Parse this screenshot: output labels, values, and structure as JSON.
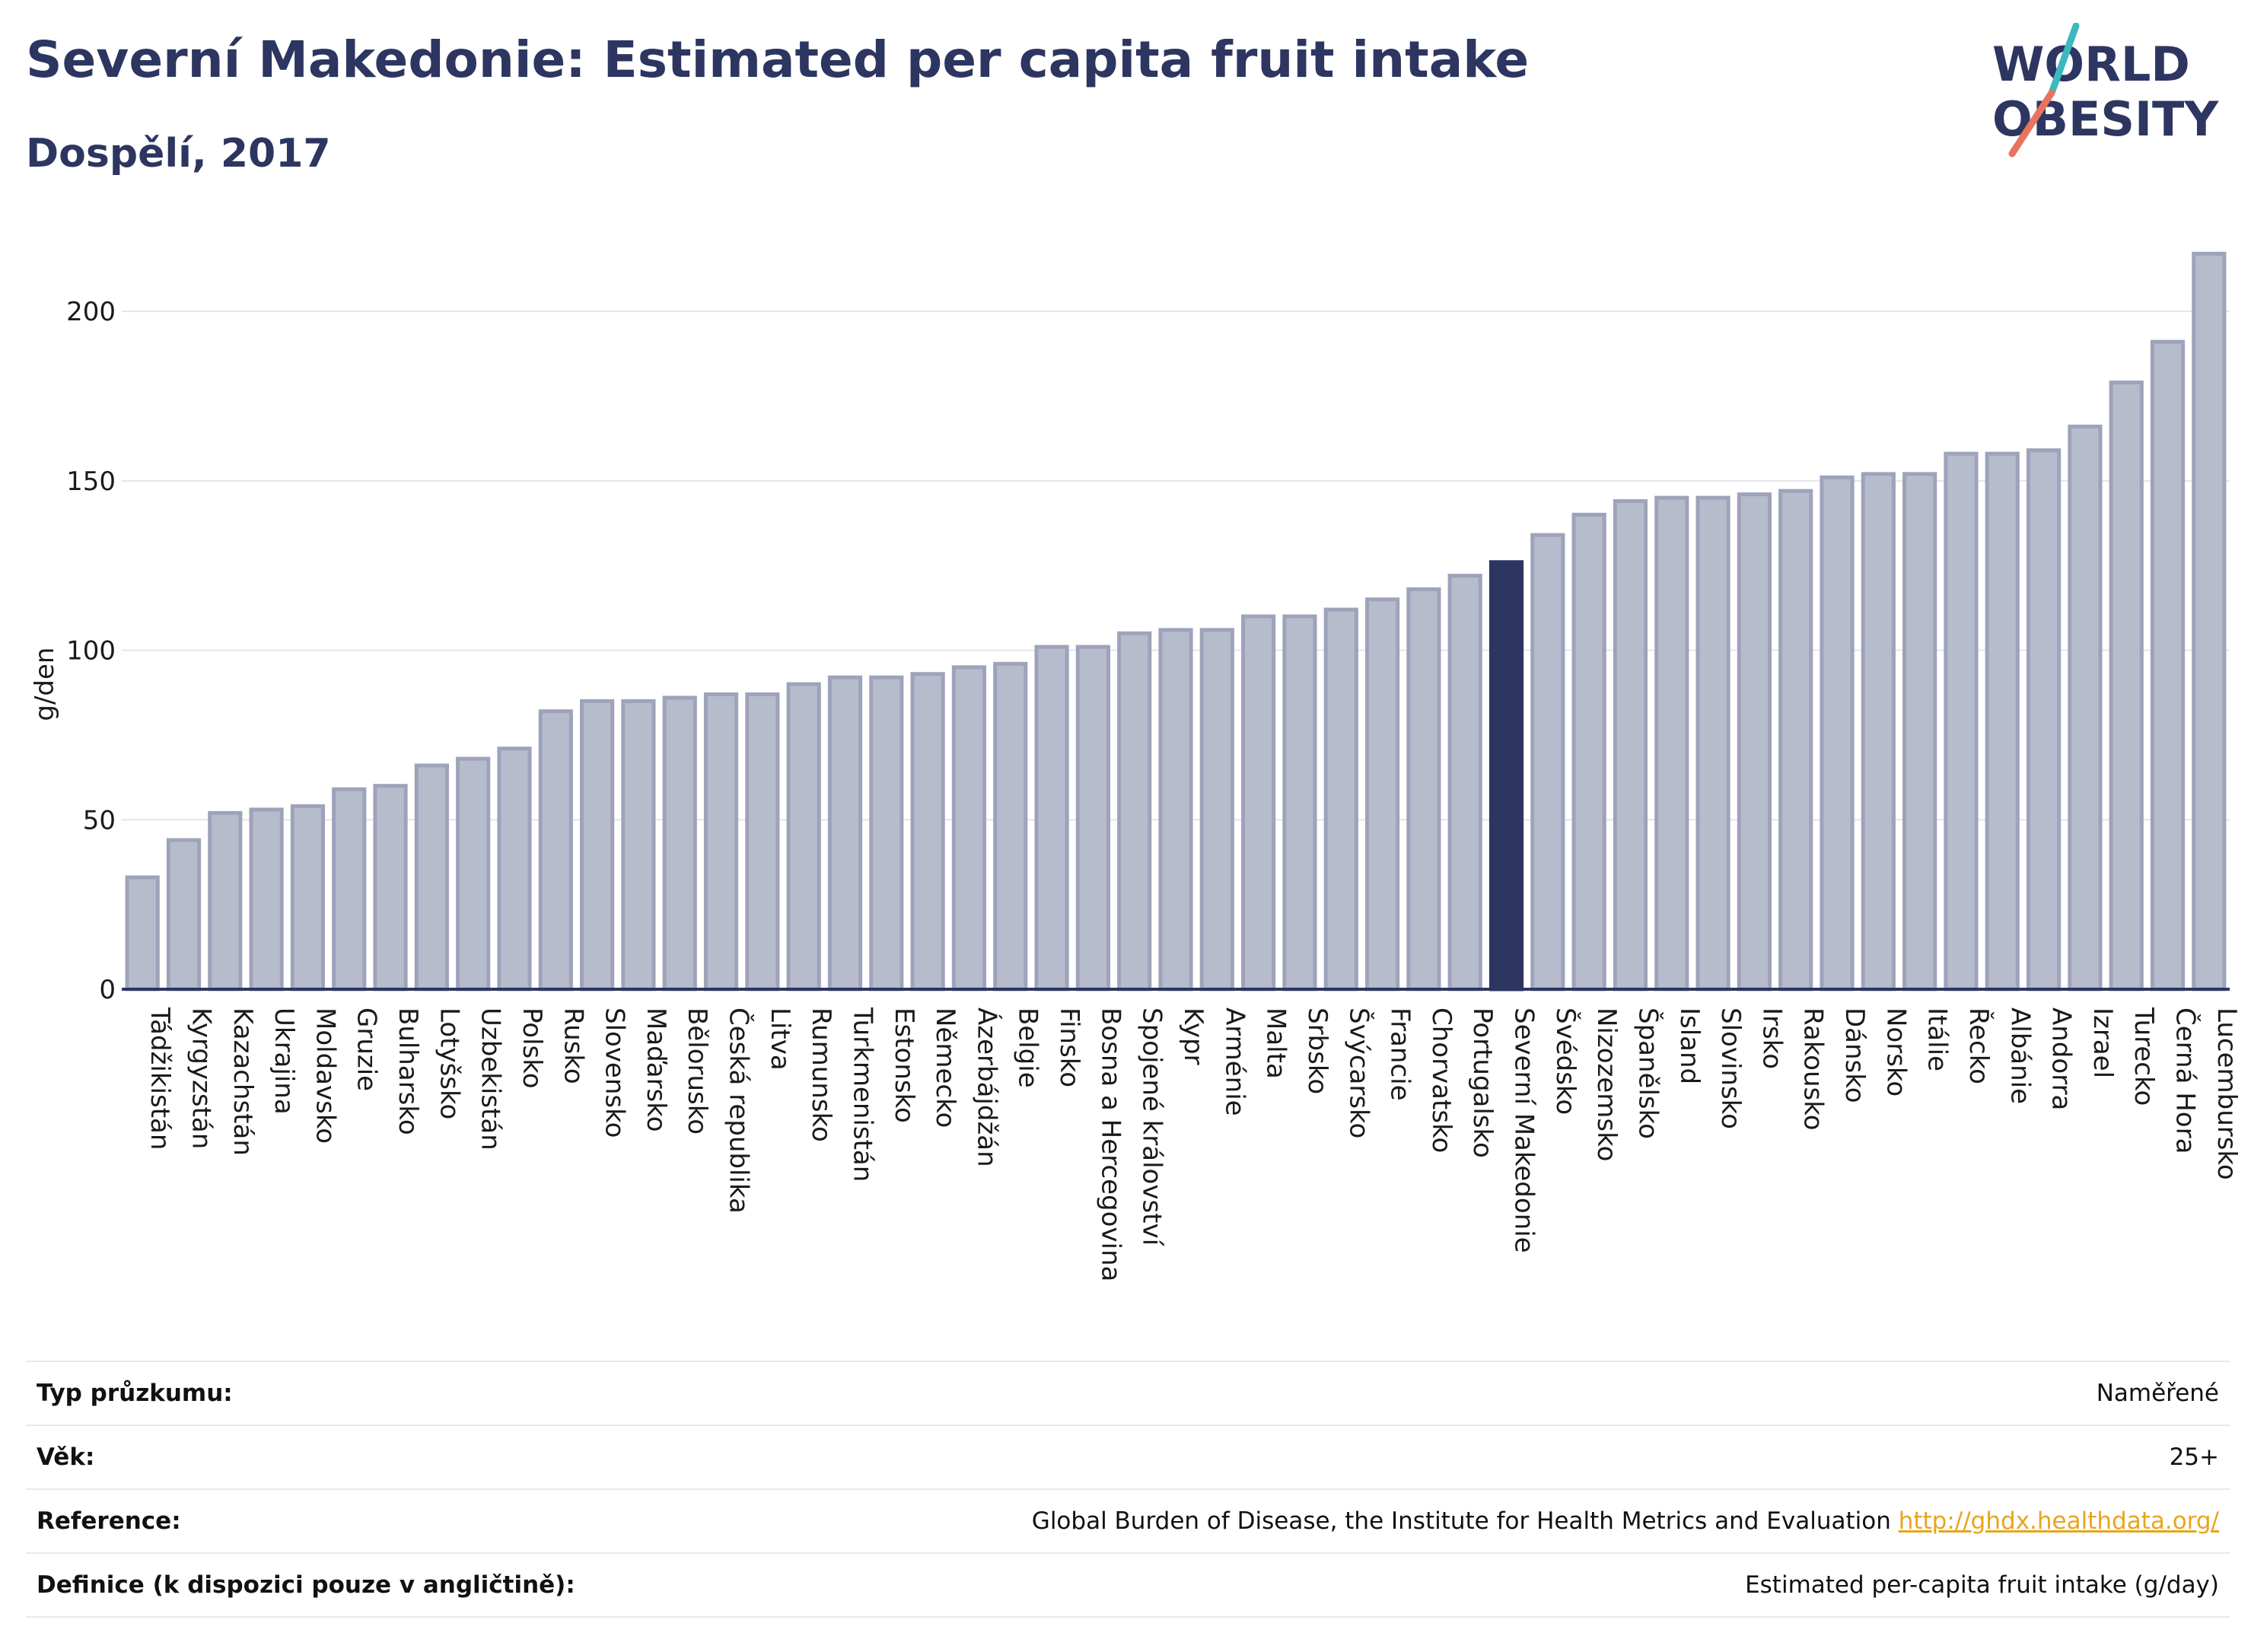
{
  "header": {
    "title": "Severní Makedonie: Estimated per capita fruit intake",
    "subtitle": "Dospělí, 2017"
  },
  "logo": {
    "text_line1": "WORLD",
    "text_line2": "OBESITY",
    "accent_colors": [
      "#3bb8c0",
      "#e8735f"
    ]
  },
  "colors": {
    "bar_default": "#b7bccd",
    "bar_border": "#9da3ba",
    "bar_highlight": "#2d3561",
    "title": "#2d3561",
    "link": "#e8a51c"
  },
  "chart_data": {
    "type": "bar",
    "title": "Severní Makedonie: Estimated per capita fruit intake",
    "subtitle": "Dospělí, 2017",
    "xlabel": "",
    "ylabel": "g/den",
    "ylim": [
      0,
      220
    ],
    "yticks": [
      0,
      50,
      100,
      150,
      200
    ],
    "grid": true,
    "highlight": "Severní Makedonie",
    "categories": [
      "Tádžikistán",
      "Kyrgyzstán",
      "Kazachstán",
      "Ukrajina",
      "Moldavsko",
      "Gruzie",
      "Bulharsko",
      "Lotyšsko",
      "Uzbekistán",
      "Polsko",
      "Rusko",
      "Slovensko",
      "Maďarsko",
      "Bělorusko",
      "Česká republika",
      "Litva",
      "Rumunsko",
      "Turkmenistán",
      "Estonsko",
      "Německo",
      "Ázerbájdžán",
      "Belgie",
      "Finsko",
      "Bosna a Hercegovina",
      "Spojené království",
      "Kypr",
      "Arménie",
      "Malta",
      "Srbsko",
      "Švýcarsko",
      "Francie",
      "Chorvatsko",
      "Portugalsko",
      "Severní Makedonie",
      "Švédsko",
      "Nizozemsko",
      "Španělsko",
      "Island",
      "Slovinsko",
      "Irsko",
      "Rakousko",
      "Dánsko",
      "Norsko",
      "Itálie",
      "Řecko",
      "Albánie",
      "Andorra",
      "Izrael",
      "Turecko",
      "Černá Hora",
      "Lucembursko"
    ],
    "values": [
      33,
      44,
      52,
      53,
      54,
      59,
      60,
      66,
      68,
      71,
      82,
      85,
      85,
      86,
      87,
      87,
      90,
      92,
      92,
      93,
      95,
      96,
      101,
      101,
      105,
      106,
      106,
      110,
      110,
      112,
      115,
      118,
      122,
      126,
      134,
      140,
      144,
      145,
      145,
      146,
      147,
      151,
      152,
      152,
      158,
      158,
      159,
      166,
      179,
      191,
      217
    ]
  },
  "info": {
    "rows": [
      {
        "label": "Typ průzkumu:",
        "value": "Naměřené"
      },
      {
        "label": "Věk:",
        "value": "25+"
      },
      {
        "label": "Reference:",
        "value": "Global Burden of Disease, the Institute for Health Metrics and Evaluation",
        "link": "http://ghdx.healthdata.org/"
      },
      {
        "label": "Definice (k dispozici pouze v angličtině):",
        "value": "Estimated per-capita fruit intake (g/day)"
      }
    ]
  }
}
